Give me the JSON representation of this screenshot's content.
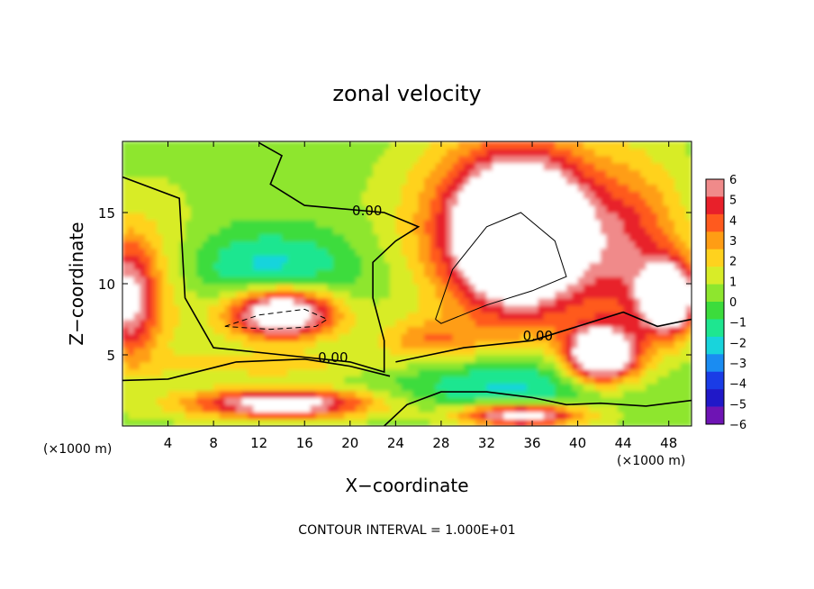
{
  "chart_data": {
    "type": "heatmap",
    "title": "zonal velocity",
    "xlabel": "X−coordinate",
    "ylabel": "Z−coordinate",
    "x_unit": "(×1000 m)",
    "x_unit_right": "(×1000 m)",
    "xlim": [
      0,
      50
    ],
    "ylim": [
      0,
      20
    ],
    "x_ticks": [
      4,
      8,
      12,
      16,
      20,
      24,
      28,
      32,
      36,
      40,
      44,
      48
    ],
    "y_ticks": [
      5,
      10,
      15
    ],
    "colorbar": {
      "ticks": [
        "6",
        "5",
        "4",
        "3",
        "2",
        "1",
        "0",
        "−1",
        "−2",
        "−3",
        "−4",
        "−5",
        "−6"
      ],
      "colors": [
        "#f08a8a",
        "#e8202a",
        "#ff5a1e",
        "#ff9d14",
        "#ffd21e",
        "#d8ec28",
        "#8ee62e",
        "#3cdc3c",
        "#1ee690",
        "#18d4dc",
        "#1a8cf2",
        "#1a3ce6",
        "#2018c8",
        "#6e14b4"
      ]
    },
    "fields": [
      {
        "kind": "bg",
        "value": 0
      },
      {
        "x": 2.5,
        "z": 10,
        "rx": 6,
        "rz": 8,
        "value": 2
      },
      {
        "x": 0.5,
        "z": 9,
        "rx": 3,
        "rz": 5,
        "value": 6
      },
      {
        "x": 13,
        "z": 11,
        "rx": 10,
        "rz": 3.5,
        "value": -3
      },
      {
        "x": 14,
        "z": 8,
        "rx": 6,
        "rz": 2.3,
        "value": 10
      },
      {
        "x": 13,
        "z": 4.3,
        "rx": 12,
        "rz": 1.2,
        "value": 2
      },
      {
        "x": 14,
        "z": 1.6,
        "rx": 10,
        "rz": 1.3,
        "value": 8
      },
      {
        "x": 34,
        "z": 14,
        "rx": 11,
        "rz": 8,
        "value": 5
      },
      {
        "x": 35,
        "z": 13.5,
        "rx": 7,
        "rz": 6.5,
        "value": 10
      },
      {
        "x": 45,
        "z": 12,
        "rx": 6,
        "rz": 8,
        "value": 4
      },
      {
        "x": 48,
        "z": 9,
        "rx": 3,
        "rz": 3,
        "value": 10
      },
      {
        "x": 34,
        "z": 3,
        "rx": 12,
        "rz": 2.5,
        "value": -3
      },
      {
        "x": 42,
        "z": 5,
        "rx": 4,
        "rz": 2.5,
        "value": 10
      },
      {
        "x": 35,
        "z": 0.8,
        "rx": 7,
        "rz": 1,
        "value": 8
      },
      {
        "x": 27,
        "z": 6,
        "rx": 6,
        "rz": 2,
        "value": 3
      }
    ],
    "contours": [
      {
        "value": 0,
        "label": "0.00",
        "label_x": 21.5,
        "label_z": 14.8,
        "points": [
          [
            0,
            17.5
          ],
          [
            5,
            16
          ],
          [
            5.5,
            9
          ],
          [
            8,
            5.5
          ],
          [
            14,
            5
          ],
          [
            20,
            4.5
          ],
          [
            23,
            3.8
          ],
          [
            23,
            6
          ],
          [
            22,
            9
          ],
          [
            22,
            11.5
          ],
          [
            24,
            13
          ],
          [
            26,
            14
          ],
          [
            23,
            15
          ],
          [
            16,
            15.5
          ],
          [
            13,
            17
          ],
          [
            14,
            19
          ],
          [
            12,
            19.9
          ]
        ]
      },
      {
        "value": 0,
        "label": "0.00",
        "label_x": 18.5,
        "label_z": 4.5,
        "points": [
          [
            0,
            3.2
          ],
          [
            4,
            3.3
          ],
          [
            10,
            4.5
          ],
          [
            16,
            4.7
          ],
          [
            20,
            4.2
          ],
          [
            23.5,
            3.5
          ]
        ]
      },
      {
        "value": 0,
        "label": "0.00",
        "label_x": 36.5,
        "label_z": 6.0,
        "points": [
          [
            24,
            4.5
          ],
          [
            30,
            5.5
          ],
          [
            36,
            6
          ],
          [
            40,
            7
          ],
          [
            44,
            8
          ],
          [
            47,
            7
          ],
          [
            50,
            7.5
          ]
        ]
      },
      {
        "value": 10,
        "label": "",
        "label_x": 0,
        "label_z": 0,
        "points": [
          [
            27.5,
            7.5
          ],
          [
            29,
            11
          ],
          [
            32,
            14
          ],
          [
            35,
            15
          ],
          [
            38,
            13
          ],
          [
            39,
            10.5
          ],
          [
            36,
            9.5
          ],
          [
            32,
            8.5
          ],
          [
            28,
            7.2
          ],
          [
            27.5,
            7.5
          ]
        ]
      },
      {
        "value": -10,
        "label": "",
        "label_x": 0,
        "label_z": 0,
        "points": [
          [
            9,
            7
          ],
          [
            12,
            7.8
          ],
          [
            16,
            8.2
          ],
          [
            18,
            7.5
          ],
          [
            17,
            7
          ],
          [
            13,
            6.8
          ],
          [
            9,
            7
          ]
        ]
      },
      {
        "value": 0,
        "label": "",
        "label_x": 0,
        "label_z": 0,
        "points": [
          [
            23,
            0
          ],
          [
            25,
            1.5
          ],
          [
            28,
            2.4
          ],
          [
            32,
            2.4
          ],
          [
            36,
            2
          ],
          [
            39,
            1.5
          ],
          [
            42,
            1.6
          ],
          [
            46,
            1.4
          ],
          [
            50,
            1.8
          ]
        ]
      }
    ]
  },
  "footer": {
    "text": "CONTOUR INTERVAL = 1.000E+01"
  }
}
